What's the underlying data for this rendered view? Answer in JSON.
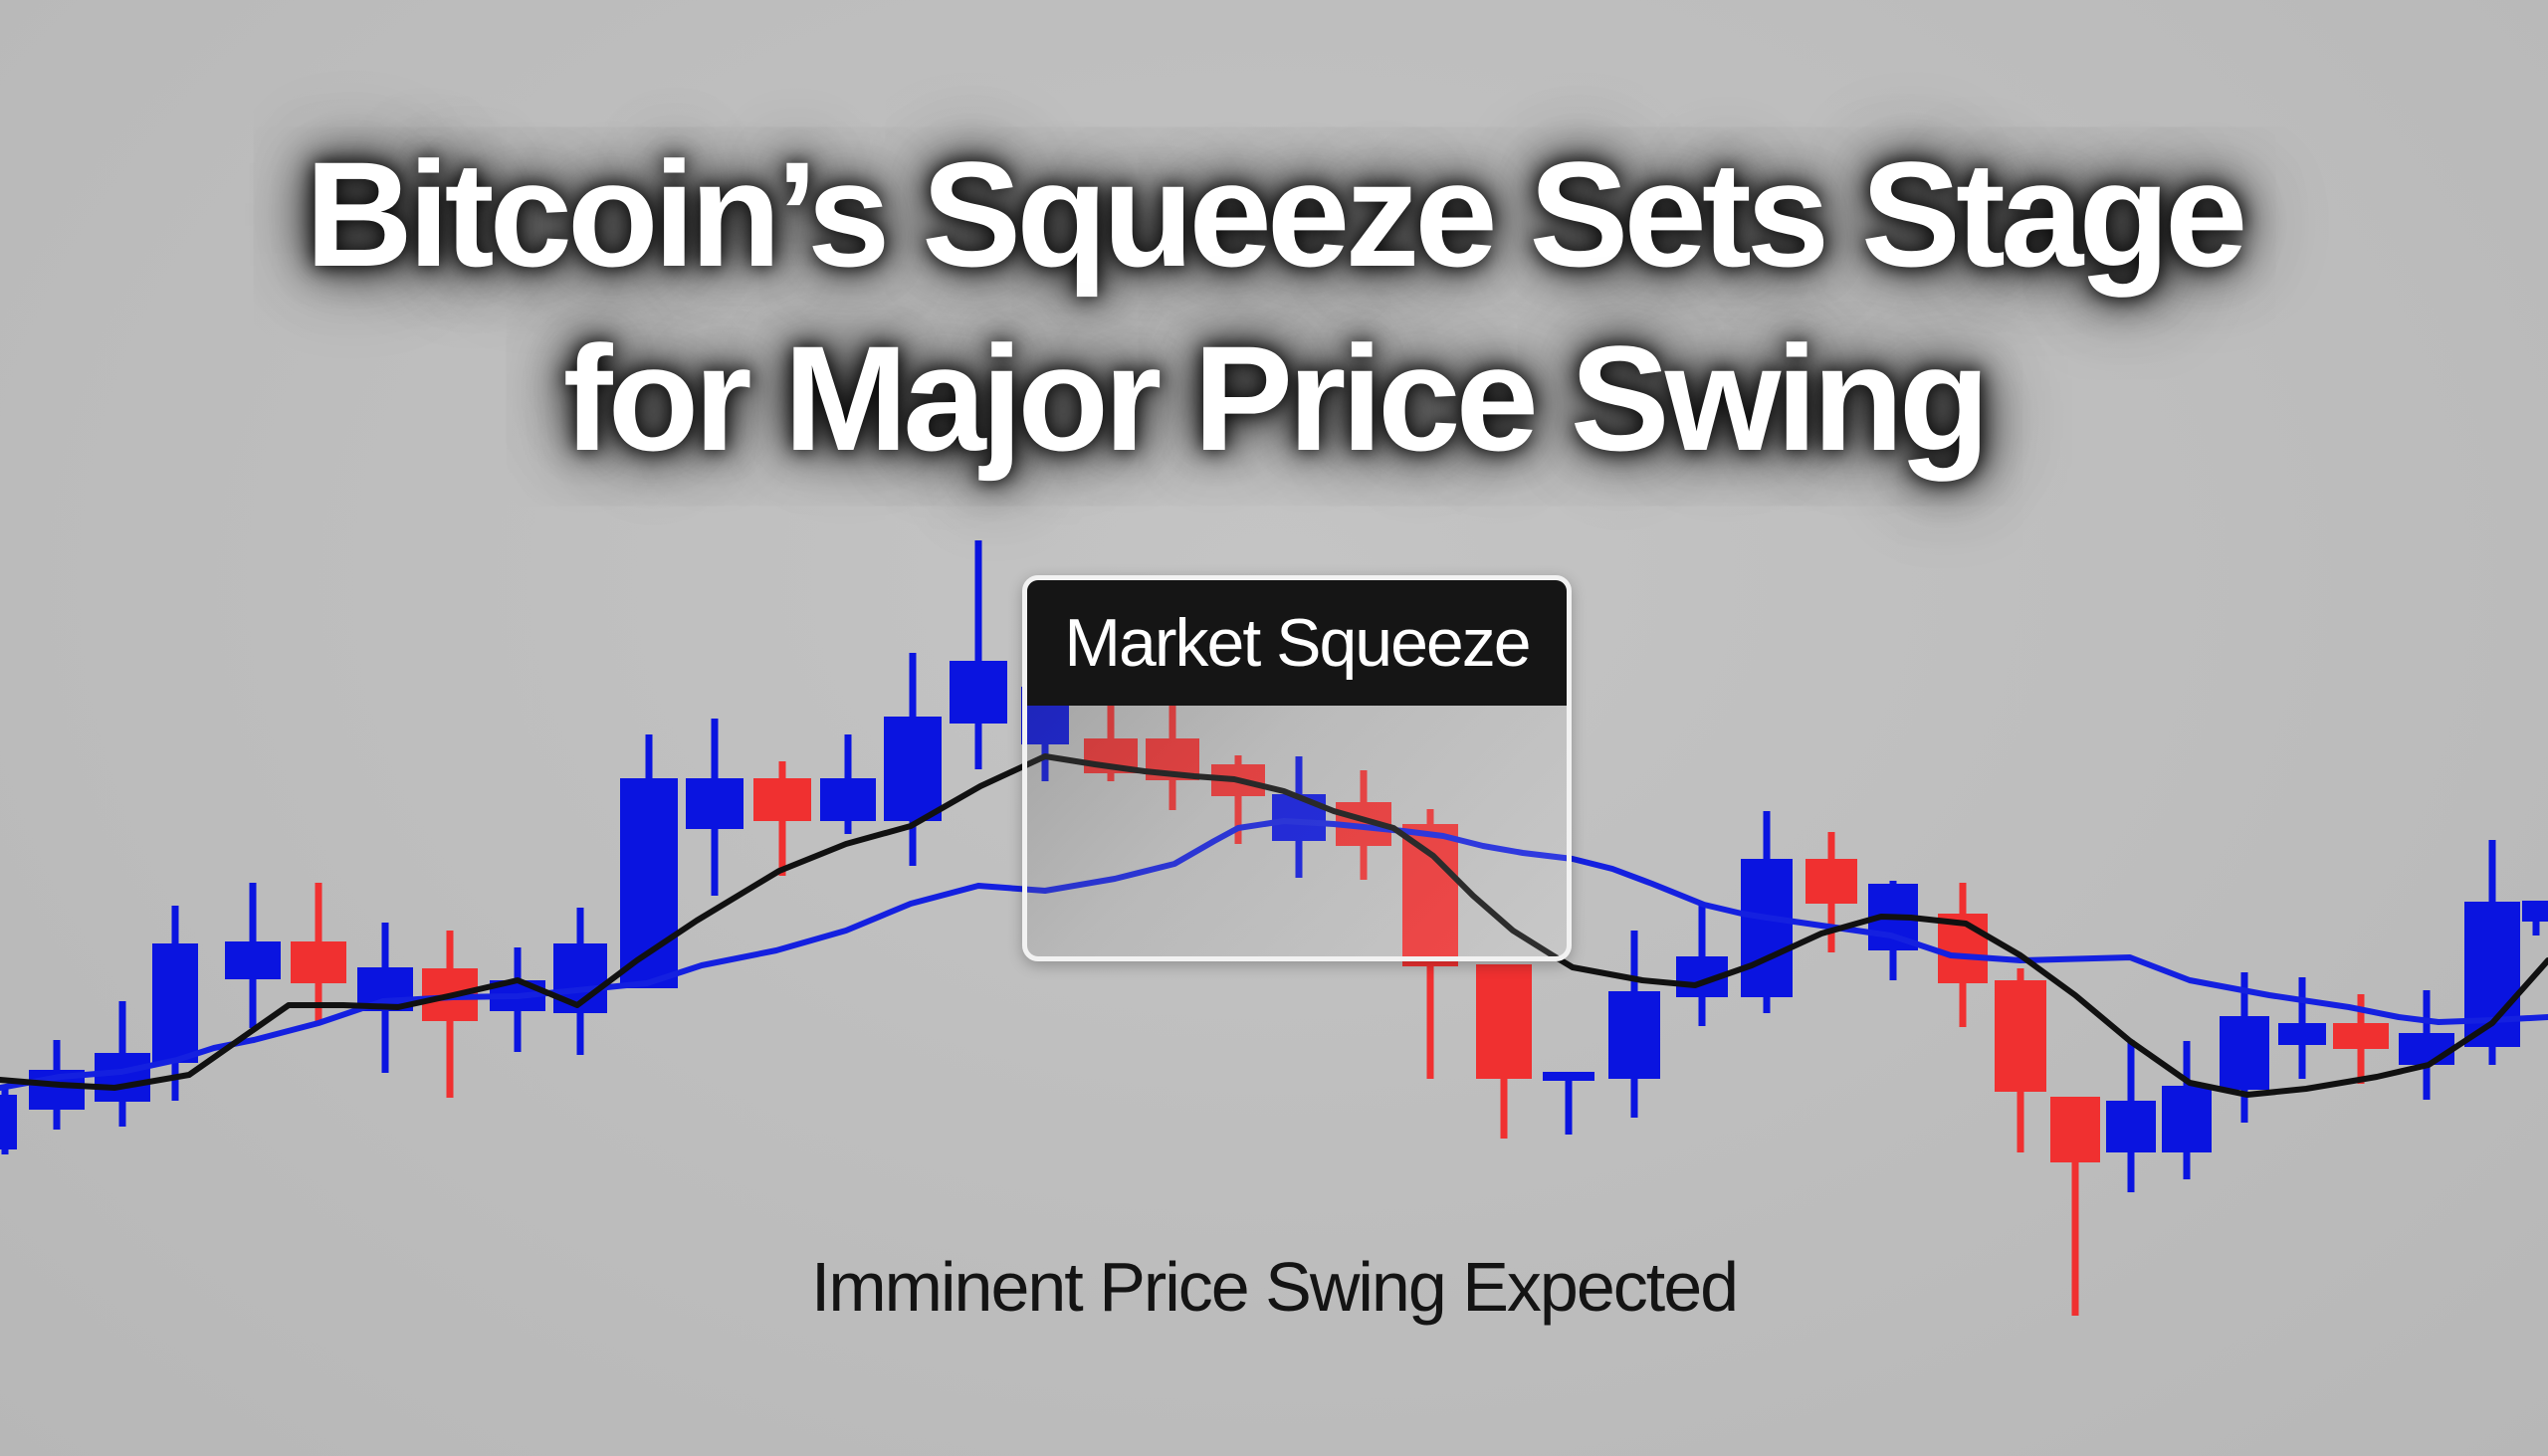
{
  "headline": {
    "line1": "Bitcoin’s Squeeze Sets Stage",
    "line2": "for Major Price Swing"
  },
  "callout": {
    "label": "Market Squeeze"
  },
  "caption": "Imminent Price Swing Expected",
  "colors": {
    "background": "#bdbdbd",
    "bullish": "#0a14e0",
    "bearish": "#f03030",
    "ma_fast": "#111111",
    "ma_slow": "#1420e0",
    "headline_text": "#ffffff",
    "callout_header": "#151515"
  },
  "chart_data": {
    "type": "candlestick",
    "title": "Bitcoin’s Squeeze Sets Stage for Major Price Swing",
    "subtitle": "Imminent Price Swing Expected",
    "annotations": [
      {
        "text": "Market Squeeze",
        "region_x": [
          1027,
          1579
        ],
        "region_y": [
          578,
          966
        ]
      }
    ],
    "xlabel": "",
    "ylabel": "",
    "axes_visible": false,
    "grid": false,
    "legend": "none",
    "units_note": "No axes shown; values are screen-space y-pixels (smaller = higher price). x = candle center in px.",
    "candles": [
      {
        "x": 5,
        "dir": "up",
        "open": 1155,
        "close": 1100,
        "high": 1090,
        "low": 1160,
        "w": 24
      },
      {
        "x": 57,
        "dir": "up",
        "open": 1115,
        "close": 1075,
        "high": 1045,
        "low": 1135,
        "w": 56
      },
      {
        "x": 123,
        "dir": "up",
        "open": 1107,
        "close": 1058,
        "high": 1006,
        "low": 1132,
        "w": 56
      },
      {
        "x": 176,
        "dir": "up",
        "open": 1068,
        "close": 948,
        "high": 910,
        "low": 1106,
        "w": 46
      },
      {
        "x": 254,
        "dir": "up",
        "open": 984,
        "close": 946,
        "high": 887,
        "low": 1033,
        "w": 56
      },
      {
        "x": 320,
        "dir": "down",
        "open": 946,
        "close": 988,
        "high": 887,
        "low": 1030,
        "w": 56
      },
      {
        "x": 387,
        "dir": "up",
        "open": 1016,
        "close": 972,
        "high": 927,
        "low": 1078,
        "w": 56
      },
      {
        "x": 452,
        "dir": "down",
        "open": 973,
        "close": 1026,
        "high": 935,
        "low": 1103,
        "w": 56
      },
      {
        "x": 520,
        "dir": "up",
        "open": 1016,
        "close": 985,
        "high": 952,
        "low": 1057,
        "w": 56
      },
      {
        "x": 583,
        "dir": "up",
        "open": 1018,
        "close": 948,
        "high": 912,
        "low": 1060,
        "w": 54
      },
      {
        "x": 652,
        "dir": "up",
        "open": 993,
        "close": 782,
        "high": 738,
        "low": 992,
        "w": 58
      },
      {
        "x": 718,
        "dir": "up",
        "open": 833,
        "close": 782,
        "high": 722,
        "low": 900,
        "w": 58
      },
      {
        "x": 786,
        "dir": "down",
        "open": 782,
        "close": 825,
        "high": 765,
        "low": 880,
        "w": 58
      },
      {
        "x": 852,
        "dir": "up",
        "open": 825,
        "close": 782,
        "high": 738,
        "low": 838,
        "w": 56
      },
      {
        "x": 917,
        "dir": "up",
        "open": 825,
        "close": 720,
        "high": 656,
        "low": 870,
        "w": 58
      },
      {
        "x": 983,
        "dir": "up",
        "open": 727,
        "close": 664,
        "high": 543,
        "low": 773,
        "w": 58
      },
      {
        "x": 1050,
        "dir": "up",
        "open": 748,
        "close": 690,
        "high": 665,
        "low": 785,
        "w": 48
      },
      {
        "x": 1116,
        "dir": "down",
        "open": 742,
        "close": 777,
        "high": 706,
        "low": 785,
        "w": 54
      },
      {
        "x": 1178,
        "dir": "down",
        "open": 742,
        "close": 784,
        "high": 706,
        "low": 814,
        "w": 54
      },
      {
        "x": 1244,
        "dir": "down",
        "open": 768,
        "close": 800,
        "high": 759,
        "low": 848,
        "w": 54
      },
      {
        "x": 1305,
        "dir": "up",
        "open": 845,
        "close": 798,
        "high": 760,
        "low": 882,
        "w": 54
      },
      {
        "x": 1370,
        "dir": "down",
        "open": 806,
        "close": 850,
        "high": 774,
        "low": 884,
        "w": 56
      },
      {
        "x": 1437,
        "dir": "down",
        "open": 828,
        "close": 971,
        "high": 813,
        "low": 1084,
        "w": 56
      },
      {
        "x": 1511,
        "dir": "down",
        "open": 969,
        "close": 1084,
        "high": 969,
        "low": 1144,
        "w": 56
      },
      {
        "x": 1576,
        "dir": "up",
        "open": 1085,
        "close": 1077,
        "high": 1077,
        "low": 1140,
        "w": 52
      },
      {
        "x": 1642,
        "dir": "up",
        "open": 1084,
        "close": 996,
        "high": 935,
        "low": 1123,
        "w": 52
      },
      {
        "x": 1710,
        "dir": "up",
        "open": 1002,
        "close": 961,
        "high": 910,
        "low": 1031,
        "w": 52
      },
      {
        "x": 1775,
        "dir": "up",
        "open": 1002,
        "close": 863,
        "high": 815,
        "low": 1018,
        "w": 52
      },
      {
        "x": 1840,
        "dir": "down",
        "open": 863,
        "close": 908,
        "high": 836,
        "low": 957,
        "w": 52
      },
      {
        "x": 1902,
        "dir": "up",
        "open": 955,
        "close": 888,
        "high": 885,
        "low": 985,
        "w": 50
      },
      {
        "x": 1972,
        "dir": "down",
        "open": 918,
        "close": 988,
        "high": 887,
        "low": 1032,
        "w": 50
      },
      {
        "x": 2030,
        "dir": "down",
        "open": 985,
        "close": 1097,
        "high": 973,
        "low": 1158,
        "w": 52
      },
      {
        "x": 2085,
        "dir": "down",
        "open": 1102,
        "close": 1168,
        "high": 1102,
        "low": 1322,
        "w": 50
      },
      {
        "x": 2141,
        "dir": "up",
        "open": 1158,
        "close": 1106,
        "high": 1045,
        "low": 1198,
        "w": 50
      },
      {
        "x": 2197,
        "dir": "up",
        "open": 1158,
        "close": 1091,
        "high": 1046,
        "low": 1185,
        "w": 50
      },
      {
        "x": 2255,
        "dir": "up",
        "open": 1095,
        "close": 1021,
        "high": 977,
        "low": 1128,
        "w": 50
      },
      {
        "x": 2313,
        "dir": "up",
        "open": 1050,
        "close": 1028,
        "high": 982,
        "low": 1084,
        "w": 48
      },
      {
        "x": 2372,
        "dir": "down",
        "open": 1028,
        "close": 1054,
        "high": 999,
        "low": 1089,
        "w": 56
      },
      {
        "x": 2438,
        "dir": "up",
        "open": 1070,
        "close": 1038,
        "high": 995,
        "low": 1105,
        "w": 56
      },
      {
        "x": 2504,
        "dir": "up",
        "open": 1052,
        "close": 906,
        "high": 844,
        "low": 1070,
        "w": 56
      },
      {
        "x": 2548,
        "dir": "up",
        "open": 926,
        "close": 905,
        "high": 905,
        "low": 940,
        "w": 28
      }
    ],
    "series": [
      {
        "name": "Fast moving average",
        "color": "#111111",
        "points": [
          [
            0,
            1085
          ],
          [
            60,
            1090
          ],
          [
            115,
            1093
          ],
          [
            190,
            1080
          ],
          [
            290,
            1010
          ],
          [
            345,
            1010
          ],
          [
            400,
            1012
          ],
          [
            455,
            1000
          ],
          [
            520,
            985
          ],
          [
            580,
            1010
          ],
          [
            640,
            965
          ],
          [
            700,
            925
          ],
          [
            783,
            875
          ],
          [
            850,
            848
          ],
          [
            915,
            830
          ],
          [
            985,
            790
          ],
          [
            1050,
            760
          ],
          [
            1100,
            768
          ],
          [
            1150,
            775
          ],
          [
            1200,
            780
          ],
          [
            1240,
            783
          ],
          [
            1290,
            795
          ],
          [
            1340,
            815
          ],
          [
            1400,
            832
          ],
          [
            1440,
            860
          ],
          [
            1480,
            900
          ],
          [
            1520,
            935
          ],
          [
            1560,
            960
          ],
          [
            1580,
            972
          ],
          [
            1650,
            985
          ],
          [
            1703,
            990
          ],
          [
            1760,
            970
          ],
          [
            1830,
            938
          ],
          [
            1890,
            921
          ],
          [
            1920,
            922
          ],
          [
            1975,
            928
          ],
          [
            2030,
            960
          ],
          [
            2085,
            1000
          ],
          [
            2140,
            1046
          ],
          [
            2200,
            1088
          ],
          [
            2258,
            1100
          ],
          [
            2317,
            1094
          ],
          [
            2388,
            1082
          ],
          [
            2440,
            1070
          ],
          [
            2504,
            1028
          ],
          [
            2560,
            965
          ]
        ]
      },
      {
        "name": "Slow moving average",
        "color": "#1420e0",
        "points": [
          [
            0,
            1093
          ],
          [
            60,
            1082
          ],
          [
            122,
            1077
          ],
          [
            178,
            1065
          ],
          [
            215,
            1053
          ],
          [
            255,
            1045
          ],
          [
            320,
            1028
          ],
          [
            385,
            1006
          ],
          [
            455,
            1002
          ],
          [
            520,
            1001
          ],
          [
            600,
            993
          ],
          [
            650,
            988
          ],
          [
            705,
            970
          ],
          [
            780,
            955
          ],
          [
            850,
            935
          ],
          [
            915,
            908
          ],
          [
            983,
            890
          ],
          [
            1050,
            895
          ],
          [
            1120,
            883
          ],
          [
            1180,
            868
          ],
          [
            1220,
            845
          ],
          [
            1244,
            832
          ],
          [
            1290,
            825
          ],
          [
            1340,
            828
          ],
          [
            1370,
            831
          ],
          [
            1410,
            835
          ],
          [
            1450,
            840
          ],
          [
            1490,
            850
          ],
          [
            1530,
            857
          ],
          [
            1580,
            863
          ],
          [
            1620,
            873
          ],
          [
            1660,
            888
          ],
          [
            1712,
            909
          ],
          [
            1750,
            918
          ],
          [
            1775,
            922
          ],
          [
            1830,
            930
          ],
          [
            1900,
            940
          ],
          [
            1960,
            960
          ],
          [
            2030,
            965
          ],
          [
            2140,
            962
          ],
          [
            2200,
            985
          ],
          [
            2280,
            1000
          ],
          [
            2360,
            1012
          ],
          [
            2410,
            1022
          ],
          [
            2450,
            1027
          ],
          [
            2504,
            1025
          ],
          [
            2560,
            1022
          ]
        ]
      }
    ],
    "ylim_pixels": [
      540,
      1325
    ],
    "xlim_pixels": [
      0,
      2560
    ]
  }
}
